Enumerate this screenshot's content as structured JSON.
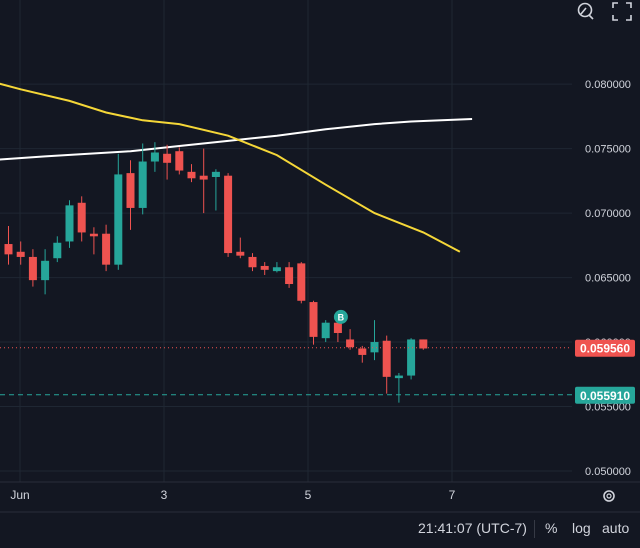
{
  "chart_data": {
    "type": "candlestick",
    "x_ticks": [
      "Jun",
      "3",
      "5",
      "7"
    ],
    "y_ticks": [
      "0.080000",
      "0.075000",
      "0.070000",
      "0.065000",
      "0.060000",
      "0.055000",
      "0.050000"
    ],
    "ylim": [
      0.0493,
      0.0842
    ],
    "candles": [
      {
        "o": 0.0676,
        "h": 0.069,
        "l": 0.066,
        "c": 0.0668
      },
      {
        "o": 0.067,
        "h": 0.0678,
        "l": 0.066,
        "c": 0.0666
      },
      {
        "o": 0.0666,
        "h": 0.0672,
        "l": 0.0643,
        "c": 0.0648
      },
      {
        "o": 0.0648,
        "h": 0.0672,
        "l": 0.0637,
        "c": 0.0663
      },
      {
        "o": 0.0665,
        "h": 0.0682,
        "l": 0.0662,
        "c": 0.0677
      },
      {
        "o": 0.0678,
        "h": 0.071,
        "l": 0.0673,
        "c": 0.0706
      },
      {
        "o": 0.0708,
        "h": 0.0713,
        "l": 0.0678,
        "c": 0.0685
      },
      {
        "o": 0.0684,
        "h": 0.0689,
        "l": 0.0668,
        "c": 0.0682
      },
      {
        "o": 0.0684,
        "h": 0.0691,
        "l": 0.0655,
        "c": 0.066
      },
      {
        "o": 0.066,
        "h": 0.0746,
        "l": 0.0656,
        "c": 0.073
      },
      {
        "o": 0.0731,
        "h": 0.0741,
        "l": 0.0687,
        "c": 0.0704
      },
      {
        "o": 0.0704,
        "h": 0.0754,
        "l": 0.0699,
        "c": 0.074
      },
      {
        "o": 0.074,
        "h": 0.0755,
        "l": 0.0732,
        "c": 0.0747
      },
      {
        "o": 0.0746,
        "h": 0.0753,
        "l": 0.0726,
        "c": 0.0739
      },
      {
        "o": 0.0748,
        "h": 0.0751,
        "l": 0.073,
        "c": 0.0733
      },
      {
        "o": 0.0732,
        "h": 0.0738,
        "l": 0.0724,
        "c": 0.0727
      },
      {
        "o": 0.0729,
        "h": 0.075,
        "l": 0.07,
        "c": 0.0726
      },
      {
        "o": 0.0728,
        "h": 0.0734,
        "l": 0.0702,
        "c": 0.0732
      },
      {
        "o": 0.0729,
        "h": 0.0731,
        "l": 0.0666,
        "c": 0.0669
      },
      {
        "o": 0.067,
        "h": 0.0681,
        "l": 0.0665,
        "c": 0.0667
      },
      {
        "o": 0.0666,
        "h": 0.0669,
        "l": 0.0655,
        "c": 0.0658
      },
      {
        "o": 0.0659,
        "h": 0.0662,
        "l": 0.0652,
        "c": 0.0656
      },
      {
        "o": 0.0655,
        "h": 0.0662,
        "l": 0.0654,
        "c": 0.0658
      },
      {
        "o": 0.0658,
        "h": 0.0662,
        "l": 0.0642,
        "c": 0.0645
      },
      {
        "o": 0.0661,
        "h": 0.0662,
        "l": 0.063,
        "c": 0.0632
      },
      {
        "o": 0.0631,
        "h": 0.0632,
        "l": 0.0598,
        "c": 0.0604
      },
      {
        "o": 0.0603,
        "h": 0.0617,
        "l": 0.06,
        "c": 0.0615
      },
      {
        "o": 0.0615,
        "h": 0.0617,
        "l": 0.06,
        "c": 0.0607
      },
      {
        "o": 0.0602,
        "h": 0.061,
        "l": 0.0594,
        "c": 0.0596
      },
      {
        "o": 0.0595,
        "h": 0.0597,
        "l": 0.0584,
        "c": 0.059
      },
      {
        "o": 0.0592,
        "h": 0.0617,
        "l": 0.0586,
        "c": 0.06
      },
      {
        "o": 0.0601,
        "h": 0.0605,
        "l": 0.056,
        "c": 0.0573
      },
      {
        "o": 0.0572,
        "h": 0.0576,
        "l": 0.0553,
        "c": 0.0574
      },
      {
        "o": 0.0574,
        "h": 0.0603,
        "l": 0.0571,
        "c": 0.0602
      },
      {
        "o": 0.0602,
        "h": 0.0602,
        "l": 0.0594,
        "c": 0.0595
      }
    ],
    "ma_white": [
      [
        0.074,
        -3
      ],
      [
        0.0744,
        3
      ],
      [
        0.0748,
        10
      ],
      [
        0.0752,
        14
      ],
      [
        0.0756,
        18
      ],
      [
        0.076,
        22
      ],
      [
        0.0765,
        26
      ],
      [
        0.0769,
        30
      ],
      [
        0.0771,
        33
      ],
      [
        0.0773,
        38
      ]
    ],
    "ma_yellow": [
      [
        0.0806,
        -3
      ],
      [
        0.0796,
        1
      ],
      [
        0.0787,
        5
      ],
      [
        0.0778,
        8
      ],
      [
        0.0772,
        11
      ],
      [
        0.0769,
        14
      ],
      [
        0.076,
        18
      ],
      [
        0.0745,
        22
      ],
      [
        0.0722,
        26
      ],
      [
        0.07,
        30
      ],
      [
        0.0685,
        34
      ],
      [
        0.067,
        37
      ]
    ],
    "last_price": "0.059560",
    "target_price": "0.055910",
    "target_value": 0.05591,
    "marker_label": "B",
    "colors": {
      "up": "#26a69a",
      "down": "#ef5350",
      "ma_white": "#ffffff",
      "ma_yellow": "#f5d738",
      "grid": "#1f2733",
      "bg": "#131722"
    }
  },
  "bottom_bar": {
    "time": "21:41:07 (UTC-7)",
    "percent": "%",
    "log": "log",
    "auto": "auto"
  }
}
